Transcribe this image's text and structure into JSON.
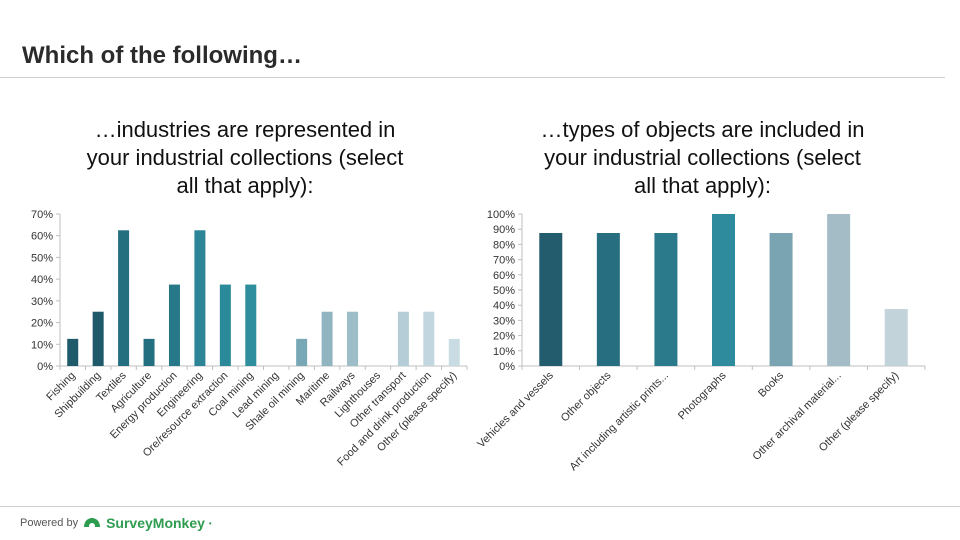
{
  "slide": {
    "title": "Which of the following…"
  },
  "footer": {
    "powered_by": "Powered by",
    "brand": "SurveyMonkey",
    "brand_mark": "•"
  },
  "colors": {
    "axis": "#bfbfbf",
    "tick_text": "#333333",
    "brand": "#2e9c4f"
  },
  "chart_data": [
    {
      "type": "bar",
      "title": "…industries are represented in your industrial collections (select all that apply):",
      "title_lines": [
        "…industries are represented in",
        "your industrial collections (select",
        "all that apply):"
      ],
      "categories": [
        "Fishing",
        "Shipbuilding",
        "Textiles",
        "Agriculture",
        "Energy production",
        "Engineering",
        "Ore/resource extraction",
        "Coal mining",
        "Lead mining",
        "Shale oil mining",
        "Maritime",
        "Railways",
        "Lighthouses",
        "Other transport",
        "Food and drink production",
        "Other (please specify)"
      ],
      "values": [
        12.5,
        25,
        62.5,
        12.5,
        37.5,
        62.5,
        37.5,
        37.5,
        0,
        12.5,
        25,
        25,
        0,
        25,
        25,
        12.5
      ],
      "colors": [
        "#1f5a6b",
        "#1f5a6b",
        "#236f80",
        "#236f80",
        "#27798a",
        "#2b8596",
        "#2b8a99",
        "#2e8e9d",
        "#5aa0ad",
        "#78a8b5",
        "#91b5c0",
        "#9dbdc8",
        "#a9c5cf",
        "#b5cdd6",
        "#c1d6de",
        "#c9dce3"
      ],
      "ylim": [
        0,
        70
      ],
      "yticks": [
        "0%",
        "10%",
        "20%",
        "30%",
        "40%",
        "50%",
        "60%",
        "70%"
      ],
      "xlabel": "",
      "ylabel": "",
      "grid": false,
      "legend": "none"
    },
    {
      "type": "bar",
      "title": "…types of objects are included in your industrial collections (select all that apply):",
      "title_lines": [
        "…types of objects are included in",
        "your industrial collections (select",
        "all that apply):"
      ],
      "categories": [
        "Vehicles and vessels",
        "Other objects",
        "Art including artistic prints...",
        "Photographs",
        "Books",
        "Other archival material...",
        "Other (please specify)"
      ],
      "values": [
        87.5,
        87.5,
        87.5,
        100,
        87.5,
        100,
        37.5
      ],
      "colors": [
        "#235c6d",
        "#276e80",
        "#2a7a8c",
        "#2e8a9d",
        "#7ba4b2",
        "#a3bcc6",
        "#c3d3da"
      ],
      "ylim": [
        0,
        100
      ],
      "yticks": [
        "0%",
        "10%",
        "20%",
        "30%",
        "40%",
        "50%",
        "60%",
        "70%",
        "80%",
        "90%",
        "100%"
      ],
      "xlabel": "",
      "ylabel": "",
      "grid": false,
      "legend": "none"
    }
  ]
}
